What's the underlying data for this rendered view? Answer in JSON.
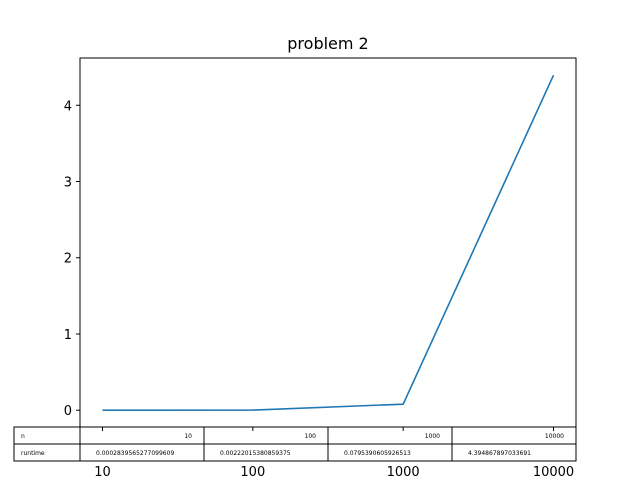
{
  "chart_data": {
    "type": "line",
    "title": "problem 2",
    "xlabel": "",
    "ylabel": "",
    "x": [
      "10",
      "100",
      "1000",
      "10000"
    ],
    "series": [
      {
        "values": [
          0.0002839565277099609,
          0.00222015380859375,
          0.0795390605926513,
          4.394867897033691
        ],
        "color": "#1f77b4"
      }
    ],
    "ylim": [
      -0.22,
      4.62
    ],
    "yticks": [
      "0",
      "1",
      "2",
      "3",
      "4"
    ],
    "grid": false,
    "table": {
      "row_labels": [
        "n",
        "runtime"
      ],
      "rows": [
        [
          "10",
          "100",
          "1000",
          "10000"
        ],
        [
          "0.0002839565277099609",
          "0.00222015380859375",
          "0.0795390605926513",
          "4.394867897033691"
        ]
      ]
    }
  }
}
